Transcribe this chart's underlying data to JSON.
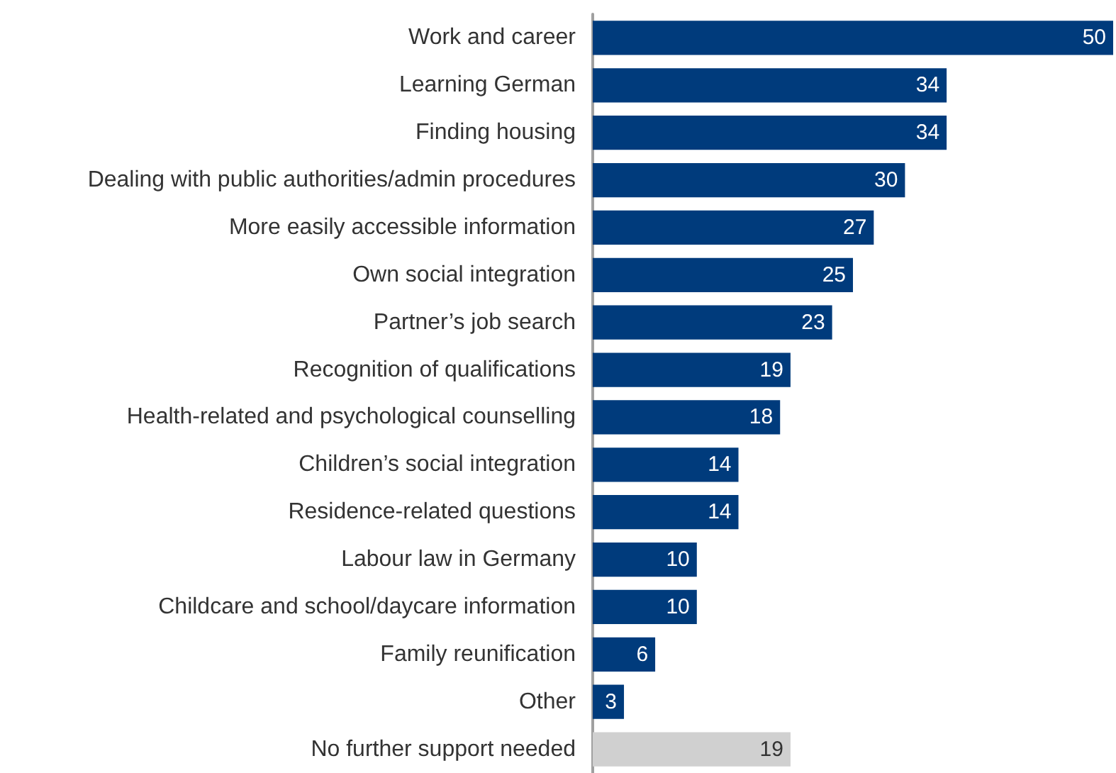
{
  "chart_data": {
    "type": "bar",
    "orientation": "horizontal",
    "data_labels": true,
    "categories": [
      "Work and career",
      "Learning German",
      "Finding housing",
      "Dealing with public authorities/admin procedures",
      "More easily accessible information",
      "Own social integration",
      "Partner’s job search",
      "Recognition of qualifications",
      "Health-related and psychological counselling",
      "Children’s social integration",
      "Residence-related questions",
      "Labour law in Germany",
      "Childcare and school/daycare information",
      "Family reunification",
      "Other",
      "No further support needed"
    ],
    "values": [
      50,
      34,
      34,
      30,
      27,
      25,
      23,
      19,
      18,
      14,
      14,
      10,
      10,
      6,
      3,
      19
    ],
    "colors": [
      "#003b7c",
      "#003b7c",
      "#003b7c",
      "#003b7c",
      "#003b7c",
      "#003b7c",
      "#003b7c",
      "#003b7c",
      "#003b7c",
      "#003b7c",
      "#003b7c",
      "#003b7c",
      "#003b7c",
      "#003b7c",
      "#003b7c",
      "#d0d0d0"
    ]
  }
}
